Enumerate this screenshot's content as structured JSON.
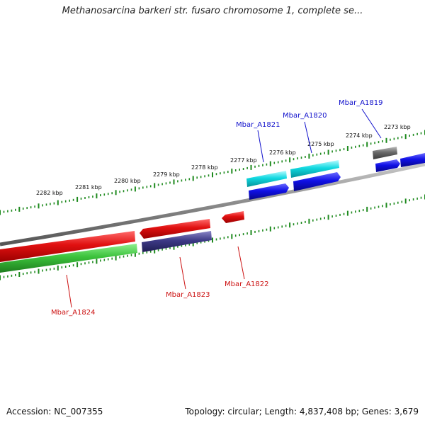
{
  "title": "Methanosarcina barkeri str. fusaro chromosome 1, complete se...",
  "footer": {
    "accession": "Accession: NC_007355",
    "summary": "Topology: circular; Length: 4,837,408 bp; Genes: 3,679"
  },
  "ruler_labels": [
    "2282 kbp",
    "2281 kbp",
    "2280 kbp",
    "2279 kbp",
    "2278 kbp",
    "2277 kbp",
    "2276 kbp",
    "2275 kbp",
    "2274 kbp",
    "2273 kbp"
  ],
  "gene_labels": {
    "mbar_a1819": "Mbar_A1819",
    "mbar_a1820": "Mbar_A1820",
    "mbar_a1821": "Mbar_A1821",
    "mbar_a1822": "Mbar_A1822",
    "mbar_a1823": "Mbar_A1823",
    "mbar_a1824": "Mbar_A1824"
  },
  "colors": {
    "backbone": "#8a8a8a",
    "red": "#e01010",
    "green": "#3cc23c",
    "navy": "#3d3a86",
    "cyan": "#10d8e0",
    "blue": "#1010e6",
    "gray": "#6a6a6a",
    "tick": "#1e8a1e",
    "label_red": "#cc1111",
    "label_blue": "#1111cc"
  }
}
